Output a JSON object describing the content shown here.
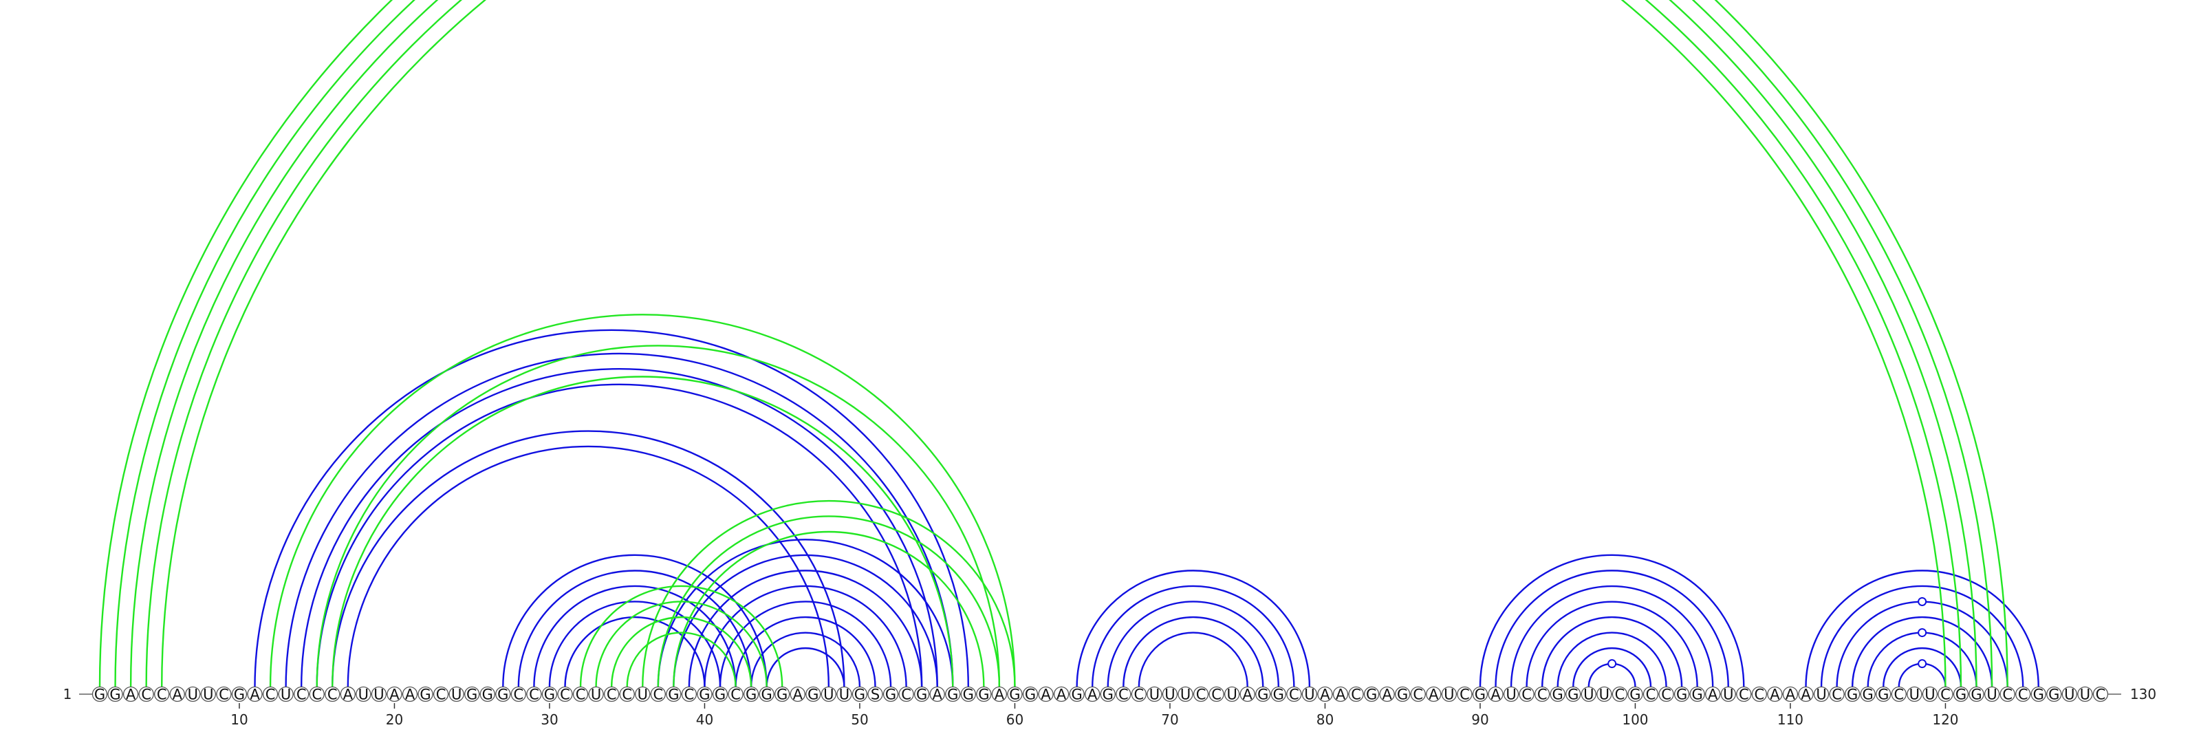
{
  "sequence": "GGACCAUUCGACUCCCAUUAAGCUGGGCCGCCUCCUCGCGGCGGGAGUUGSGCGAGGGAGGAAGAGCCUUUCCUAGGCUAACGAGCAUCGAUCCGGUUCGCCGGAUCCAAAUCGGGCUUCGGUCCGGUUC",
  "start_label": "1",
  "end_label": "130",
  "tick_labels": [
    "10",
    "20",
    "30",
    "40",
    "50",
    "60",
    "70",
    "80",
    "90",
    "100",
    "110",
    "120"
  ],
  "colors": {
    "primary": "#1010e0",
    "secondary": "#22e622"
  },
  "chart_data": {
    "type": "arc-diagram",
    "length": 130,
    "series": [
      {
        "color": "#1010e0",
        "pairs": [
          [
            11,
            57
          ],
          [
            13,
            56
          ],
          [
            14,
            55
          ],
          [
            15,
            54
          ],
          [
            16,
            49
          ],
          [
            17,
            48
          ],
          [
            27,
            44
          ],
          [
            28,
            43
          ],
          [
            29,
            42
          ],
          [
            30,
            41
          ],
          [
            31,
            40
          ],
          [
            37,
            56
          ],
          [
            38,
            55
          ],
          [
            39,
            54
          ],
          [
            40,
            53
          ],
          [
            41,
            52
          ],
          [
            42,
            51
          ],
          [
            43,
            50
          ],
          [
            44,
            49
          ],
          [
            64,
            79
          ],
          [
            65,
            78
          ],
          [
            66,
            77
          ],
          [
            67,
            76
          ],
          [
            68,
            75
          ],
          [
            90,
            107
          ],
          [
            91,
            106
          ],
          [
            92,
            105
          ],
          [
            93,
            104
          ],
          [
            94,
            103
          ],
          [
            95,
            102
          ],
          [
            96,
            101
          ],
          [
            97,
            100
          ],
          [
            111,
            126
          ],
          [
            112,
            125
          ],
          [
            113,
            124
          ],
          [
            114,
            123
          ],
          [
            115,
            122
          ],
          [
            116,
            121
          ],
          [
            117,
            120
          ]
        ]
      },
      {
        "color": "#22e622",
        "pairs": [
          [
            1,
            124
          ],
          [
            2,
            123
          ],
          [
            3,
            122
          ],
          [
            4,
            121
          ],
          [
            5,
            120
          ],
          [
            12,
            60
          ],
          [
            15,
            59
          ],
          [
            16,
            56
          ],
          [
            32,
            45
          ],
          [
            33,
            44
          ],
          [
            34,
            43
          ],
          [
            35,
            42
          ],
          [
            36,
            60
          ],
          [
            37,
            59
          ],
          [
            38,
            58
          ]
        ]
      }
    ],
    "pseudoknot_markers": [
      98,
      119,
      119,
      119
    ]
  }
}
